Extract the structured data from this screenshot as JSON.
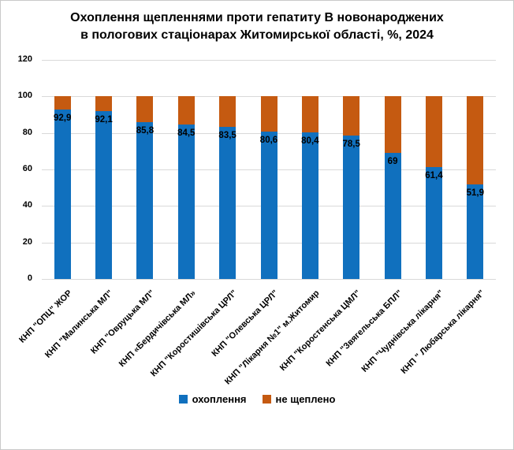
{
  "header": {
    "title_lines": [
      "Охоплення щепленнями проти гепатиту В новонароджених",
      "в пологових стаціонарах Житомирської області, %, 2024"
    ]
  },
  "chart_data": {
    "type": "bar",
    "stacked": true,
    "title": "Охоплення щепленнями проти гепатиту В новонароджених в пологових стаціонарах Житомирської області, %, 2024",
    "categories": [
      "КНП \"ОПЦ\" ЖОР",
      "КНП \"Малинська МЛ\"",
      "КНП \"Овруцька МЛ\"",
      "КНП «Бердичівська МЛ»",
      "КНП \"Коростишівська ЦРЛ\"",
      "КНП \"Олевська ЦРЛ\"",
      "КНП \"Лікарня №1\" м.Житомир",
      "КНП \"Коростенська ЦМЛ\"",
      "КНП \"Звягельська БПЛ\"",
      "КНП \"Чуднівська лікарня\"",
      "КНП \" Любарська лікарня\""
    ],
    "series": [
      {
        "name": "охоплення",
        "color": "#1070BE",
        "values": [
          92.9,
          92.1,
          85.8,
          84.5,
          83.5,
          80.6,
          80.4,
          78.5,
          69,
          61.4,
          51.9
        ]
      },
      {
        "name": "не щеплено",
        "color": "#C55A11",
        "values": [
          7.1,
          7.9,
          14.2,
          15.5,
          16.5,
          19.4,
          19.6,
          21.5,
          31,
          38.6,
          48.1
        ]
      }
    ],
    "data_labels": [
      "92,9",
      "92,1",
      "85,8",
      "84,5",
      "83,5",
      "80,6",
      "80,4",
      "78,5",
      "69",
      "61,4",
      "51,9"
    ],
    "ylim": [
      0,
      120
    ],
    "yticks": [
      0,
      20,
      40,
      60,
      80,
      100,
      120
    ],
    "xlabel": "",
    "ylabel": "",
    "grid": "horizontal",
    "legend_position": "bottom"
  },
  "colors": {
    "covered": "#1070BE",
    "not_vaccinated": "#C55A11",
    "gridline": "#D9D9D9",
    "text": "#000000",
    "border": "#C9C9C9",
    "background": "#FFFFFF"
  }
}
